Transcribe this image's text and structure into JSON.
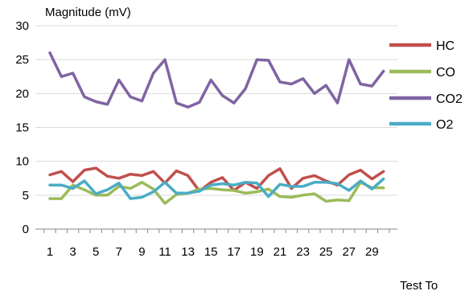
{
  "chart_data": {
    "type": "line",
    "ylabel": "Magnitude (mV)",
    "xlabel": "Test To",
    "ylim": [
      0,
      30
    ],
    "yticks": [
      0,
      5,
      10,
      15,
      20,
      25,
      30
    ],
    "x": [
      1,
      2,
      3,
      4,
      5,
      6,
      7,
      8,
      9,
      10,
      11,
      12,
      13,
      14,
      15,
      16,
      17,
      18,
      19,
      20,
      21,
      22,
      23,
      24,
      25,
      26,
      27,
      28,
      29,
      30
    ],
    "xtick_labels": [
      "1",
      "3",
      "5",
      "7",
      "9",
      "11",
      "13",
      "15",
      "17",
      "19",
      "21",
      "23",
      "25",
      "27",
      "29"
    ],
    "xtick_values": [
      1,
      3,
      5,
      7,
      9,
      11,
      13,
      15,
      17,
      19,
      21,
      23,
      25,
      27,
      29
    ],
    "grid": "horizontal",
    "legend_position": "right",
    "series": [
      {
        "name": "HC",
        "color": "#c0504d",
        "values": [
          8.0,
          8.5,
          7.0,
          8.7,
          9.0,
          7.8,
          7.5,
          8.1,
          7.9,
          8.5,
          6.8,
          8.6,
          7.9,
          5.6,
          6.9,
          7.6,
          5.7,
          6.9,
          6.0,
          7.9,
          8.9,
          6.0,
          7.5,
          7.9,
          7.1,
          6.5,
          8.0,
          8.7,
          7.4,
          8.5
        ]
      },
      {
        "name": "CO",
        "color": "#9bbb59",
        "values": [
          4.5,
          4.5,
          6.5,
          5.8,
          5.0,
          5.0,
          6.3,
          6.0,
          6.9,
          5.9,
          3.8,
          5.1,
          5.3,
          5.9,
          6.0,
          5.8,
          5.7,
          5.3,
          5.5,
          5.9,
          4.8,
          4.7,
          5.0,
          5.2,
          4.1,
          4.3,
          4.2,
          6.9,
          6.1,
          6.1
        ]
      },
      {
        "name": "CO2",
        "color": "#8064a2",
        "values": [
          26.0,
          22.5,
          23.0,
          19.5,
          18.8,
          18.4,
          22.0,
          19.5,
          18.9,
          23.0,
          25.0,
          18.6,
          18.0,
          18.7,
          22.0,
          19.7,
          18.6,
          20.7,
          25.0,
          24.9,
          21.7,
          21.4,
          22.2,
          20.0,
          21.2,
          18.6,
          25.0,
          21.4,
          21.1,
          23.3
        ]
      },
      {
        "name": "O2",
        "color": "#4bacc6",
        "values": [
          6.5,
          6.5,
          6.0,
          7.1,
          5.2,
          5.8,
          6.8,
          4.5,
          4.7,
          5.5,
          6.9,
          5.3,
          5.3,
          5.6,
          6.5,
          6.7,
          6.5,
          6.9,
          6.8,
          4.8,
          6.6,
          6.3,
          6.3,
          6.9,
          6.9,
          6.7,
          5.7,
          7.1,
          5.9,
          7.4
        ]
      }
    ]
  }
}
